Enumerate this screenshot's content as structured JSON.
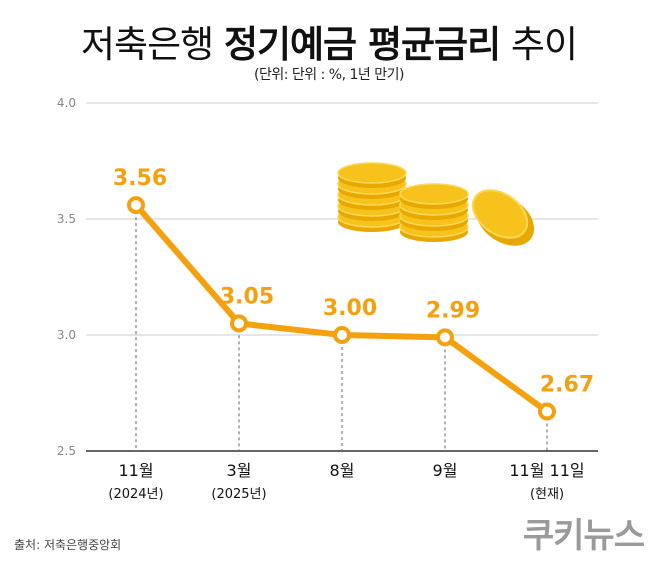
{
  "title_regular_1": "저축은행",
  "title_bold": "정기예금 평균금리",
  "title_regular_2": "추이",
  "subtitle": "(단위: 단위 : %, 1년 만기)",
  "source": "출처: 저축은행중앙회",
  "logo": "쿠키뉴스",
  "colors": {
    "line": "#F5A00F",
    "label": "#F5A00F",
    "grid": "#cccccc",
    "coin": "#F7C21B"
  },
  "chart_data": {
    "type": "line",
    "categories": [
      [
        "11월",
        "(2024년)"
      ],
      [
        "3월",
        "(2025년)"
      ],
      [
        "8월",
        ""
      ],
      [
        "9월",
        ""
      ],
      [
        "11월 11일",
        "(현재)"
      ]
    ],
    "values": [
      3.56,
      3.05,
      3.0,
      2.99,
      2.67
    ],
    "data_labels": [
      "3.56",
      "3.05",
      "3.00",
      "2.99",
      "2.67"
    ],
    "ylim": [
      2.5,
      4.0
    ],
    "yticks": [
      "2.5",
      "3.0",
      "3.5",
      "4.0"
    ],
    "grid": true,
    "decoration": "gold-coins"
  }
}
